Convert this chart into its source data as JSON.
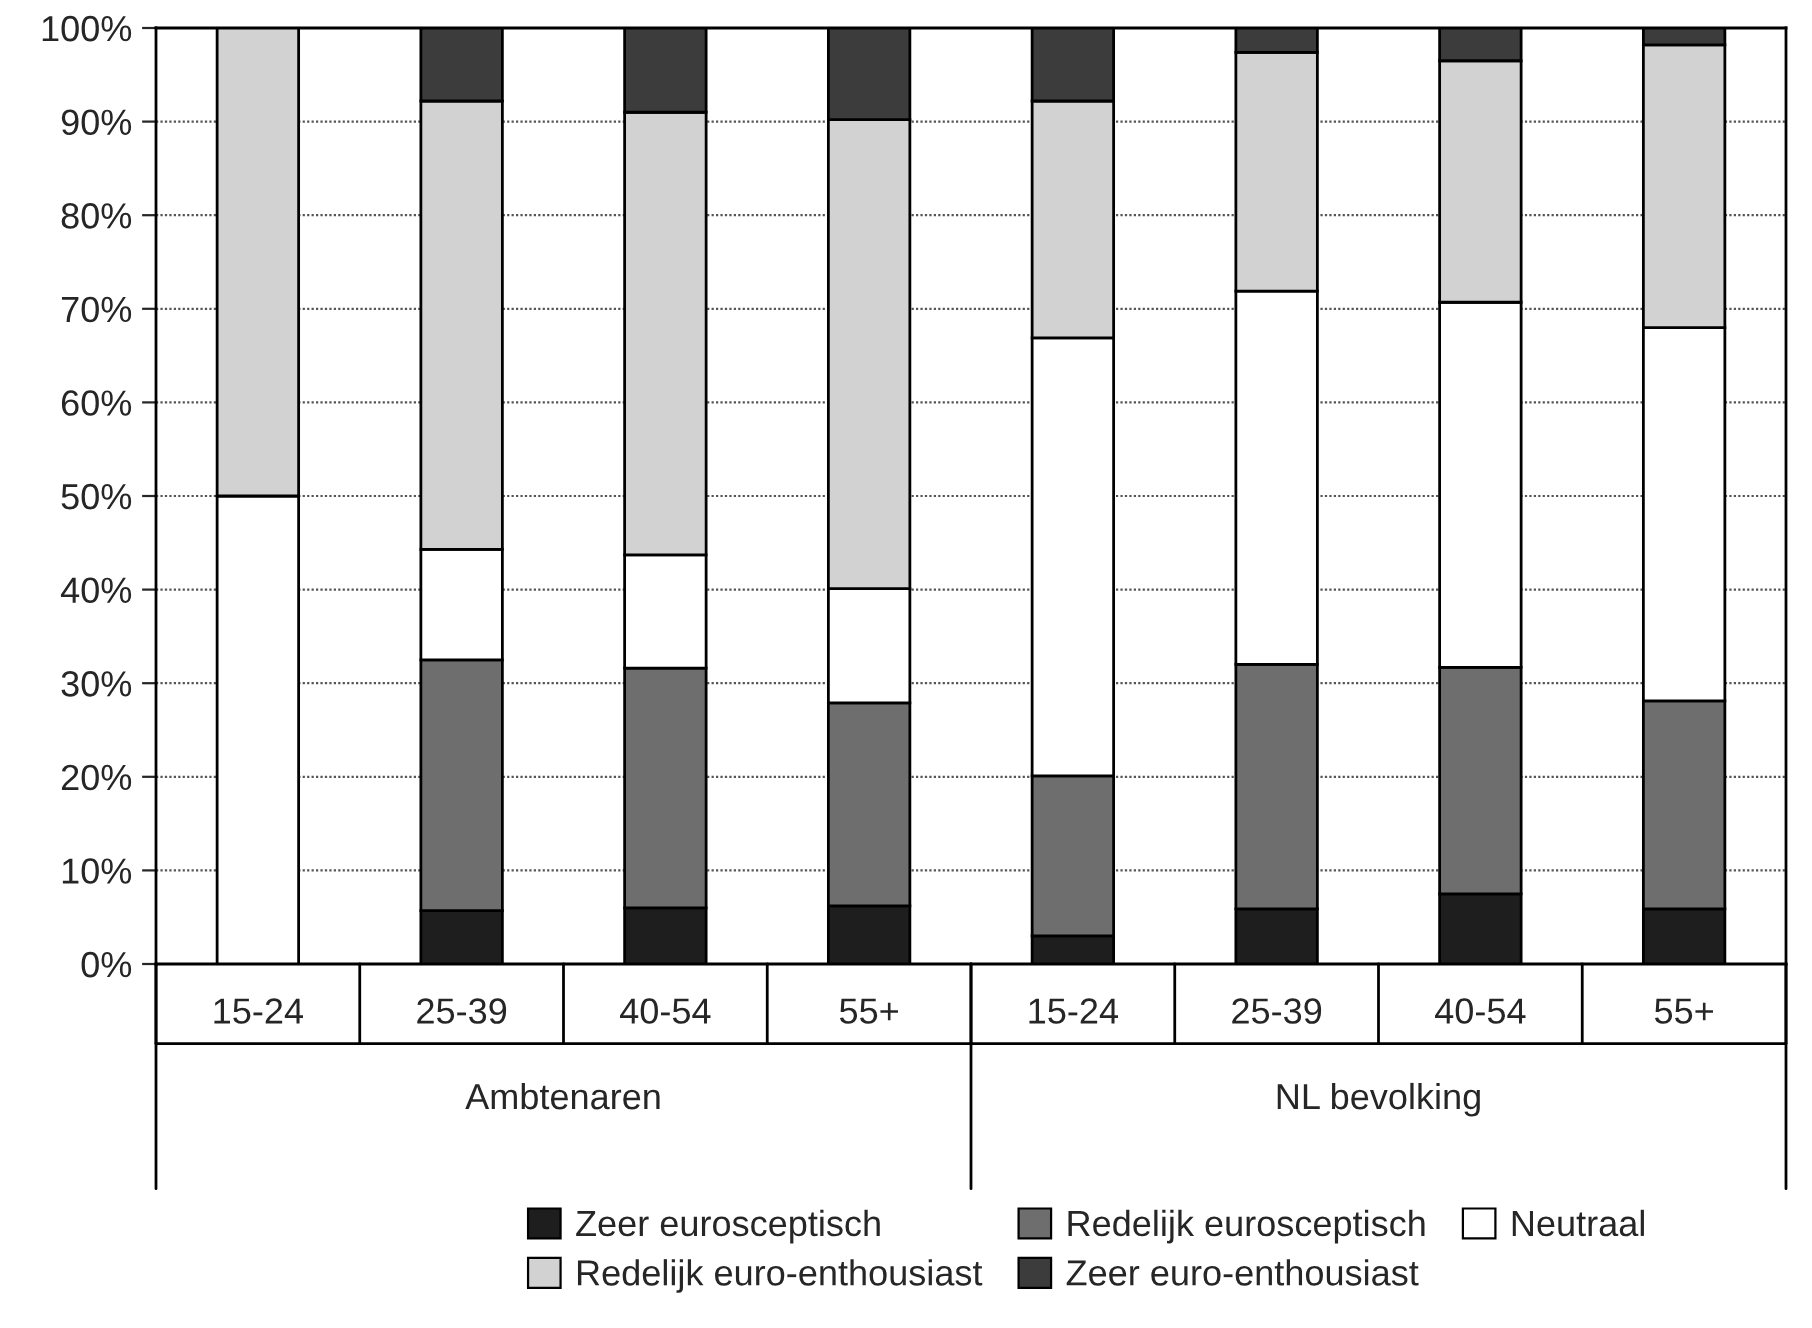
{
  "chart_data": {
    "type": "bar",
    "stacked": true,
    "categories": [
      "15-24",
      "25-39",
      "40-54",
      "55+",
      "15-24",
      "25-39",
      "40-54",
      "55+"
    ],
    "series": [
      {
        "name": "Zeer eurosceptisch",
        "color": "#1e1e1e",
        "values": [
          0,
          5.7,
          6,
          6.2,
          3,
          5.9,
          7.5,
          5.9
        ]
      },
      {
        "name": "Redelijk eurosceptisch",
        "color": "#6e6e6e",
        "values": [
          0,
          26.8,
          25.6,
          21.7,
          17.1,
          26.1,
          24.2,
          22.2
        ]
      },
      {
        "name": "Neutraal",
        "color": "#ffffff",
        "values": [
          50,
          11.8,
          12.1,
          12.2,
          46.8,
          39.9,
          39.0,
          39.9
        ]
      },
      {
        "name": "Redelijk euro-enthousiast",
        "color": "#d2d2d2",
        "values": [
          50,
          47.9,
          47.3,
          50.1,
          25.3,
          25.5,
          25.8,
          30.2
        ]
      },
      {
        "name": "Zeer euro-enthousiast",
        "color": "#3c3c3c",
        "values": [
          0,
          7.8,
          9,
          9.8,
          7.8,
          2.6,
          3.5,
          1.8
        ]
      }
    ],
    "ylim": [
      0,
      100
    ],
    "yticks": [
      {
        "value": 0,
        "label": "0%"
      },
      {
        "value": 10,
        "label": "10%"
      },
      {
        "value": 20,
        "label": "20%"
      },
      {
        "value": 30,
        "label": "30%"
      },
      {
        "value": 40,
        "label": "40%"
      },
      {
        "value": 50,
        "label": "50%"
      },
      {
        "value": 60,
        "label": "60%"
      },
      {
        "value": 70,
        "label": "70%"
      },
      {
        "value": 80,
        "label": "80%"
      },
      {
        "value": 90,
        "label": "90%"
      },
      {
        "value": 100,
        "label": "100%"
      }
    ],
    "grid": "y",
    "legend": "bottom",
    "annotations": [
      "Ambtenaren",
      "NL bevolking"
    ]
  }
}
